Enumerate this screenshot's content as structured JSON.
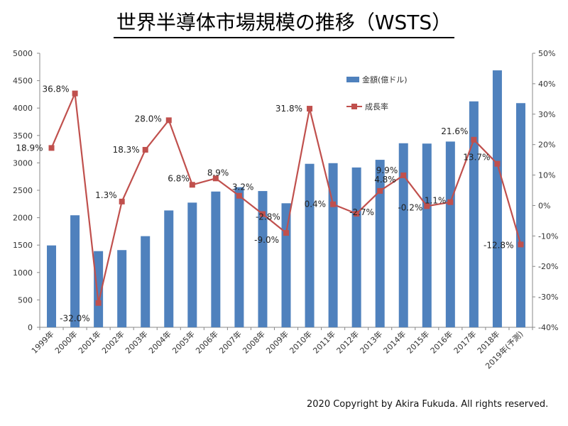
{
  "title": "世界半導体市場規模の推移（WSTS）",
  "copyright": "2020 Copyright by Akira Fukuda. All rights reserved.",
  "colors": {
    "bar": "#4f81bd",
    "line": "#c0504d"
  },
  "chart_data": {
    "type": "bar",
    "title": "世界半導体市場規模の推移（WSTS）",
    "categories": [
      "1999年",
      "2000年",
      "2001年",
      "2002年",
      "2003年",
      "2004年",
      "2005年",
      "2006年",
      "2007年",
      "2008年",
      "2009年",
      "2010年",
      "2011年",
      "2012年",
      "2013年",
      "2014年",
      "2015年",
      "2016年",
      "2017年",
      "2018年",
      "2019年(予測)"
    ],
    "series": [
      {
        "name": "金額(億ドル)",
        "type": "bar",
        "axis": "left",
        "values": [
          1494,
          2044,
          1390,
          1409,
          1663,
          2132,
          2275,
          2477,
          2556,
          2486,
          2263,
          2983,
          2995,
          2916,
          3056,
          3358,
          3352,
          3389,
          4122,
          4688,
          4090
        ]
      },
      {
        "name": "成長率",
        "type": "line",
        "axis": "right",
        "values": [
          18.9,
          36.8,
          -32.0,
          1.3,
          18.3,
          28.0,
          6.8,
          8.9,
          3.2,
          -2.8,
          -9.0,
          31.8,
          0.4,
          -2.7,
          4.8,
          9.9,
          -0.2,
          1.1,
          21.6,
          13.7,
          -12.8
        ],
        "labels": [
          "18.9%",
          "36.8%",
          "-32.0%",
          "1.3%",
          "18.3%",
          "28.0%",
          "6.8%",
          "8.9%",
          "3.2%",
          "-2.8%",
          "-9.0%",
          "31.8%",
          "0.4%",
          "-2.7%",
          "4.8%",
          "9.9%",
          "-0.2%",
          "1.1%",
          "21.6%",
          "13.7%",
          "-12.8%"
        ]
      }
    ],
    "ylim": [
      0,
      5000
    ],
    "yticks": [
      "0",
      "500",
      "1000",
      "1500",
      "2000",
      "2500",
      "3000",
      "3500",
      "4000",
      "4500",
      "5000"
    ],
    "y2lim": [
      -40,
      50
    ],
    "y2ticks": [
      "-40%",
      "-30%",
      "-20%",
      "-10%",
      "0%",
      "10%",
      "20%",
      "30%",
      "40%",
      "50%"
    ],
    "legend_position": "top-right-inside",
    "grid": false
  }
}
